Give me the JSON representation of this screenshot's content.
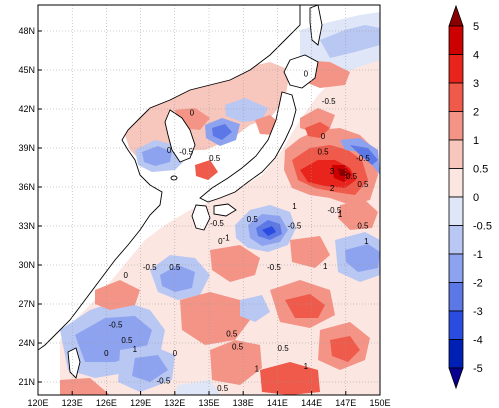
{
  "map": {
    "lon_labels": [
      "120E",
      "123E",
      "126E",
      "129E",
      "132E",
      "135E",
      "138E",
      "141E",
      "144E",
      "147E",
      "150E"
    ],
    "lat_labels": [
      "48N",
      "45N",
      "42N",
      "39N",
      "36N",
      "33N",
      "30N",
      "27N",
      "24N",
      "21N"
    ],
    "lon_range": [
      120,
      150
    ],
    "lat_range": [
      20,
      50
    ],
    "contour_labels": [
      {
        "text": "-0.5",
        "lon": 145.5,
        "lat": 42.4
      },
      {
        "text": "0",
        "lon": 143.5,
        "lat": 44.5
      },
      {
        "text": "0",
        "lon": 133.5,
        "lat": 41.5
      },
      {
        "text": "0",
        "lon": 131.5,
        "lat": 38.6
      },
      {
        "text": "0.5",
        "lon": 135.5,
        "lat": 38.0
      },
      {
        "text": "-0.5",
        "lon": 133.0,
        "lat": 38.5
      },
      {
        "text": "0",
        "lon": 145.0,
        "lat": 39.7
      },
      {
        "text": "0.5",
        "lon": 145.0,
        "lat": 38.5
      },
      {
        "text": "3",
        "lon": 145.8,
        "lat": 37.0
      },
      {
        "text": "2",
        "lon": 145.8,
        "lat": 35.7
      },
      {
        "text": "0.5",
        "lon": 147.5,
        "lat": 36.6
      },
      {
        "text": "-0.5",
        "lon": 148.5,
        "lat": 38.0
      },
      {
        "text": "0.5",
        "lon": 148.5,
        "lat": 36.0
      },
      {
        "text": "-0.5",
        "lon": 146.0,
        "lat": 34.0
      },
      {
        "text": "-0.5",
        "lon": 142.5,
        "lat": 32.8
      },
      {
        "text": "0.5",
        "lon": 138.8,
        "lat": 33.3
      },
      {
        "text": "1",
        "lon": 142.5,
        "lat": 34.3
      },
      {
        "text": "1",
        "lon": 146.5,
        "lat": 33.7
      },
      {
        "text": "-0.5",
        "lon": 135.7,
        "lat": 33.0
      },
      {
        "text": "-1",
        "lon": 136.5,
        "lat": 31.9
      },
      {
        "text": "0",
        "lon": 136.0,
        "lat": 31.6
      },
      {
        "text": "0.5",
        "lon": 148.5,
        "lat": 32.8
      },
      {
        "text": "1",
        "lon": 148.8,
        "lat": 31.6
      },
      {
        "text": "-0.5",
        "lon": 129.8,
        "lat": 29.6
      },
      {
        "text": "0",
        "lon": 127.7,
        "lat": 29.0
      },
      {
        "text": "0.5",
        "lon": 132.0,
        "lat": 29.6
      },
      {
        "text": "-0.5",
        "lon": 140.7,
        "lat": 29.6
      },
      {
        "text": "1",
        "lon": 145.2,
        "lat": 29.7
      },
      {
        "text": "-0.5",
        "lon": 126.8,
        "lat": 25.2
      },
      {
        "text": "0.5",
        "lon": 127.8,
        "lat": 24.0
      },
      {
        "text": "1",
        "lon": 128.5,
        "lat": 23.3
      },
      {
        "text": "0",
        "lon": 126.0,
        "lat": 23.0
      },
      {
        "text": "0",
        "lon": 132.0,
        "lat": 23.0
      },
      {
        "text": "0.5",
        "lon": 137.0,
        "lat": 24.5
      },
      {
        "text": "0.5",
        "lon": 137.5,
        "lat": 23.5
      },
      {
        "text": "0.5",
        "lon": 141.5,
        "lat": 23.4
      },
      {
        "text": "1",
        "lon": 139.2,
        "lat": 21.8
      },
      {
        "text": "1",
        "lon": 143.5,
        "lat": 22.0
      },
      {
        "text": "-0.5",
        "lon": 131.0,
        "lat": 20.9
      },
      {
        "text": "0.5",
        "lon": 136.2,
        "lat": 20.3
      }
    ]
  },
  "colorbar": {
    "labels": [
      "5",
      "4",
      "3",
      "2",
      "1",
      "0.5",
      "0",
      "-0.5",
      "-1",
      "-2",
      "-3",
      "-4",
      "-5"
    ],
    "colors": [
      "#8a0000",
      "#cc0000",
      "#e8241c",
      "#ef5a4a",
      "#f39486",
      "#f7c6bc",
      "#fbe6e2",
      "#dfe6f7",
      "#b9c7f3",
      "#8ea3ef",
      "#5b78e6",
      "#2b4ce0",
      "#001fb5",
      "#0a0090"
    ]
  }
}
